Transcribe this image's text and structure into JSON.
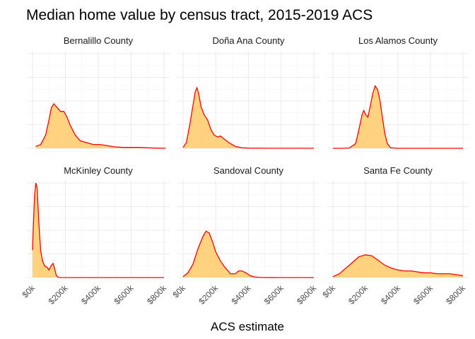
{
  "chart_data": {
    "type": "area",
    "title": "Median home value by census tract, 2015-2019 ACS",
    "xlabel": "ACS estimate",
    "ylabel": "",
    "xlim": [
      0,
      800000
    ],
    "x_ticks": [
      0,
      200000,
      400000,
      600000,
      800000
    ],
    "x_tick_labels": [
      "$0k",
      "$200k",
      "$400k",
      "$600k",
      "$800k"
    ],
    "ylim": [
      0,
      1
    ],
    "grid": true,
    "fill_color": "#ffd27f",
    "line_color": "#ff0000",
    "facets": [
      {
        "name": "Bernalillo County",
        "x_range": [
          20000,
          810000
        ],
        "points": [
          [
            20000,
            0.02
          ],
          [
            50000,
            0.04
          ],
          [
            80000,
            0.14
          ],
          [
            100000,
            0.3
          ],
          [
            115000,
            0.43
          ],
          [
            130000,
            0.47
          ],
          [
            150000,
            0.43
          ],
          [
            170000,
            0.39
          ],
          [
            190000,
            0.39
          ],
          [
            210000,
            0.33
          ],
          [
            230000,
            0.24
          ],
          [
            260000,
            0.14
          ],
          [
            290000,
            0.08
          ],
          [
            330000,
            0.06
          ],
          [
            370000,
            0.04
          ],
          [
            410000,
            0.04
          ],
          [
            450000,
            0.03
          ],
          [
            500000,
            0.015
          ],
          [
            550000,
            0.01
          ],
          [
            600000,
            0.01
          ],
          [
            650000,
            0.01
          ],
          [
            700000,
            0.005
          ],
          [
            750000,
            0.002
          ],
          [
            810000,
            0.001
          ]
        ]
      },
      {
        "name": "Doña Ana County",
        "x_range": [
          0,
          800000
        ],
        "points": [
          [
            0,
            0.01
          ],
          [
            20000,
            0.06
          ],
          [
            40000,
            0.24
          ],
          [
            60000,
            0.45
          ],
          [
            75000,
            0.6
          ],
          [
            85000,
            0.64
          ],
          [
            95000,
            0.58
          ],
          [
            110000,
            0.44
          ],
          [
            130000,
            0.35
          ],
          [
            150000,
            0.3
          ],
          [
            170000,
            0.2
          ],
          [
            190000,
            0.14
          ],
          [
            210000,
            0.12
          ],
          [
            230000,
            0.13
          ],
          [
            250000,
            0.1
          ],
          [
            280000,
            0.06
          ],
          [
            320000,
            0.02
          ],
          [
            360000,
            0.005
          ],
          [
            400000,
            0.002
          ],
          [
            500000,
            0.001
          ],
          [
            600000,
            0.001
          ],
          [
            800000,
            0.001
          ]
        ]
      },
      {
        "name": "Los Alamos County",
        "x_range": [
          0,
          800000
        ],
        "points": [
          [
            0,
            0
          ],
          [
            50000,
            0
          ],
          [
            100000,
            0.003
          ],
          [
            140000,
            0.05
          ],
          [
            160000,
            0.2
          ],
          [
            180000,
            0.36
          ],
          [
            190000,
            0.4
          ],
          [
            200000,
            0.36
          ],
          [
            215000,
            0.33
          ],
          [
            230000,
            0.45
          ],
          [
            245000,
            0.58
          ],
          [
            260000,
            0.66
          ],
          [
            275000,
            0.62
          ],
          [
            290000,
            0.5
          ],
          [
            305000,
            0.32
          ],
          [
            320000,
            0.15
          ],
          [
            335000,
            0.05
          ],
          [
            355000,
            0.005
          ],
          [
            400000,
            0
          ],
          [
            600000,
            0
          ],
          [
            800000,
            0
          ]
        ]
      },
      {
        "name": "McKinley County",
        "x_range": [
          0,
          800000
        ],
        "points": [
          [
            0,
            0.29
          ],
          [
            5000,
            0.55
          ],
          [
            12000,
            0.85
          ],
          [
            20000,
            1.0
          ],
          [
            28000,
            0.95
          ],
          [
            38000,
            0.6
          ],
          [
            50000,
            0.28
          ],
          [
            62000,
            0.17
          ],
          [
            75000,
            0.12
          ],
          [
            88000,
            0.11
          ],
          [
            100000,
            0.08
          ],
          [
            115000,
            0.13
          ],
          [
            125000,
            0.15
          ],
          [
            135000,
            0.09
          ],
          [
            145000,
            0.02
          ],
          [
            160000,
            0.001
          ],
          [
            200000,
            0
          ],
          [
            400000,
            0
          ],
          [
            600000,
            0
          ],
          [
            800000,
            0
          ]
        ]
      },
      {
        "name": "Sandoval County",
        "x_range": [
          0,
          800000
        ],
        "points": [
          [
            0,
            0.01
          ],
          [
            30000,
            0.05
          ],
          [
            60000,
            0.14
          ],
          [
            90000,
            0.3
          ],
          [
            120000,
            0.43
          ],
          [
            140000,
            0.49
          ],
          [
            160000,
            0.47
          ],
          [
            180000,
            0.38
          ],
          [
            200000,
            0.27
          ],
          [
            230000,
            0.17
          ],
          [
            260000,
            0.1
          ],
          [
            290000,
            0.04
          ],
          [
            320000,
            0.04
          ],
          [
            340000,
            0.07
          ],
          [
            360000,
            0.07
          ],
          [
            385000,
            0.05
          ],
          [
            410000,
            0.02
          ],
          [
            440000,
            0.005
          ],
          [
            480000,
            0.001
          ],
          [
            600000,
            0
          ],
          [
            800000,
            0
          ]
        ]
      },
      {
        "name": "Santa Fe County",
        "x_range": [
          0,
          800000
        ],
        "points": [
          [
            0,
            0.01
          ],
          [
            40000,
            0.04
          ],
          [
            80000,
            0.1
          ],
          [
            120000,
            0.16
          ],
          [
            160000,
            0.22
          ],
          [
            200000,
            0.24
          ],
          [
            240000,
            0.23
          ],
          [
            280000,
            0.18
          ],
          [
            320000,
            0.13
          ],
          [
            360000,
            0.1
          ],
          [
            400000,
            0.08
          ],
          [
            440000,
            0.07
          ],
          [
            480000,
            0.07
          ],
          [
            520000,
            0.06
          ],
          [
            560000,
            0.05
          ],
          [
            600000,
            0.05
          ],
          [
            640000,
            0.04
          ],
          [
            680000,
            0.04
          ],
          [
            720000,
            0.04
          ],
          [
            760000,
            0.03
          ],
          [
            800000,
            0.02
          ]
        ]
      }
    ]
  }
}
